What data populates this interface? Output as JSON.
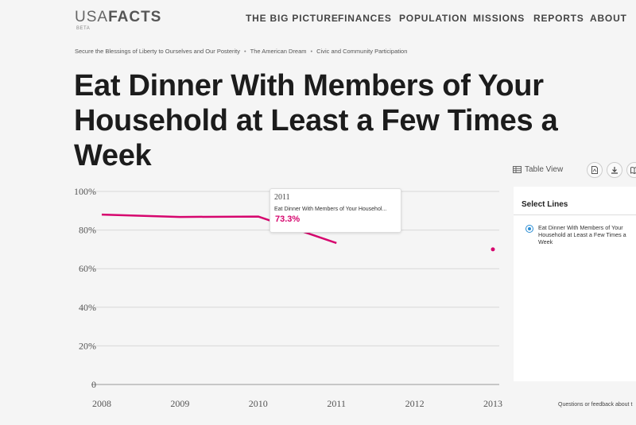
{
  "header": {
    "logo_usa": "USA",
    "logo_facts": "FACTS",
    "logo_beta": "BETA",
    "nav": [
      "THE BIG PICTURE",
      "FINANCES",
      "POPULATION",
      "MISSIONS",
      "REPORTS",
      "ABOUT"
    ]
  },
  "breadcrumb": [
    "Secure the Blessings of Liberty to Ourselves and Our Posterity",
    "The American Dream",
    "Civic and Community Participation"
  ],
  "page_title": "Eat Dinner With Members of Your Household at Least a Few Times a Week",
  "toolbar": {
    "table_view": "Table View",
    "icons": [
      "pdf-icon",
      "download-icon",
      "book-icon"
    ]
  },
  "panel": {
    "title": "Select Lines",
    "option": "Eat Dinner With Members of Your Household at Least a Few Times a Week"
  },
  "tooltip": {
    "year": "2011",
    "series": "Eat Dinner With Members of Your Househol...",
    "value": "73.3%"
  },
  "feedback": "Questions or feedback about t",
  "colors": {
    "accent": "#d6066e",
    "radio": "#2a8dd4"
  },
  "chart_data": {
    "type": "line",
    "title": "",
    "xlabel": "",
    "ylabel": "",
    "x": [
      2008,
      2009,
      2010,
      2011
    ],
    "series": [
      {
        "name": "Eat Dinner With Members of Your Household at Least a Few Times a Week",
        "values": [
          88.0,
          86.8,
          87.0,
          73.3
        ]
      }
    ],
    "extra_points": [
      {
        "x": 2013,
        "y": 70.0
      }
    ],
    "x_ticks": [
      "2008",
      "2009",
      "2010",
      "2011",
      "2012",
      "2013"
    ],
    "y_ticks": [
      "0",
      "20%",
      "40%",
      "60%",
      "80%",
      "100%"
    ],
    "ylim": [
      0,
      100
    ],
    "xlim": [
      2008,
      2013
    ],
    "grid": true
  }
}
